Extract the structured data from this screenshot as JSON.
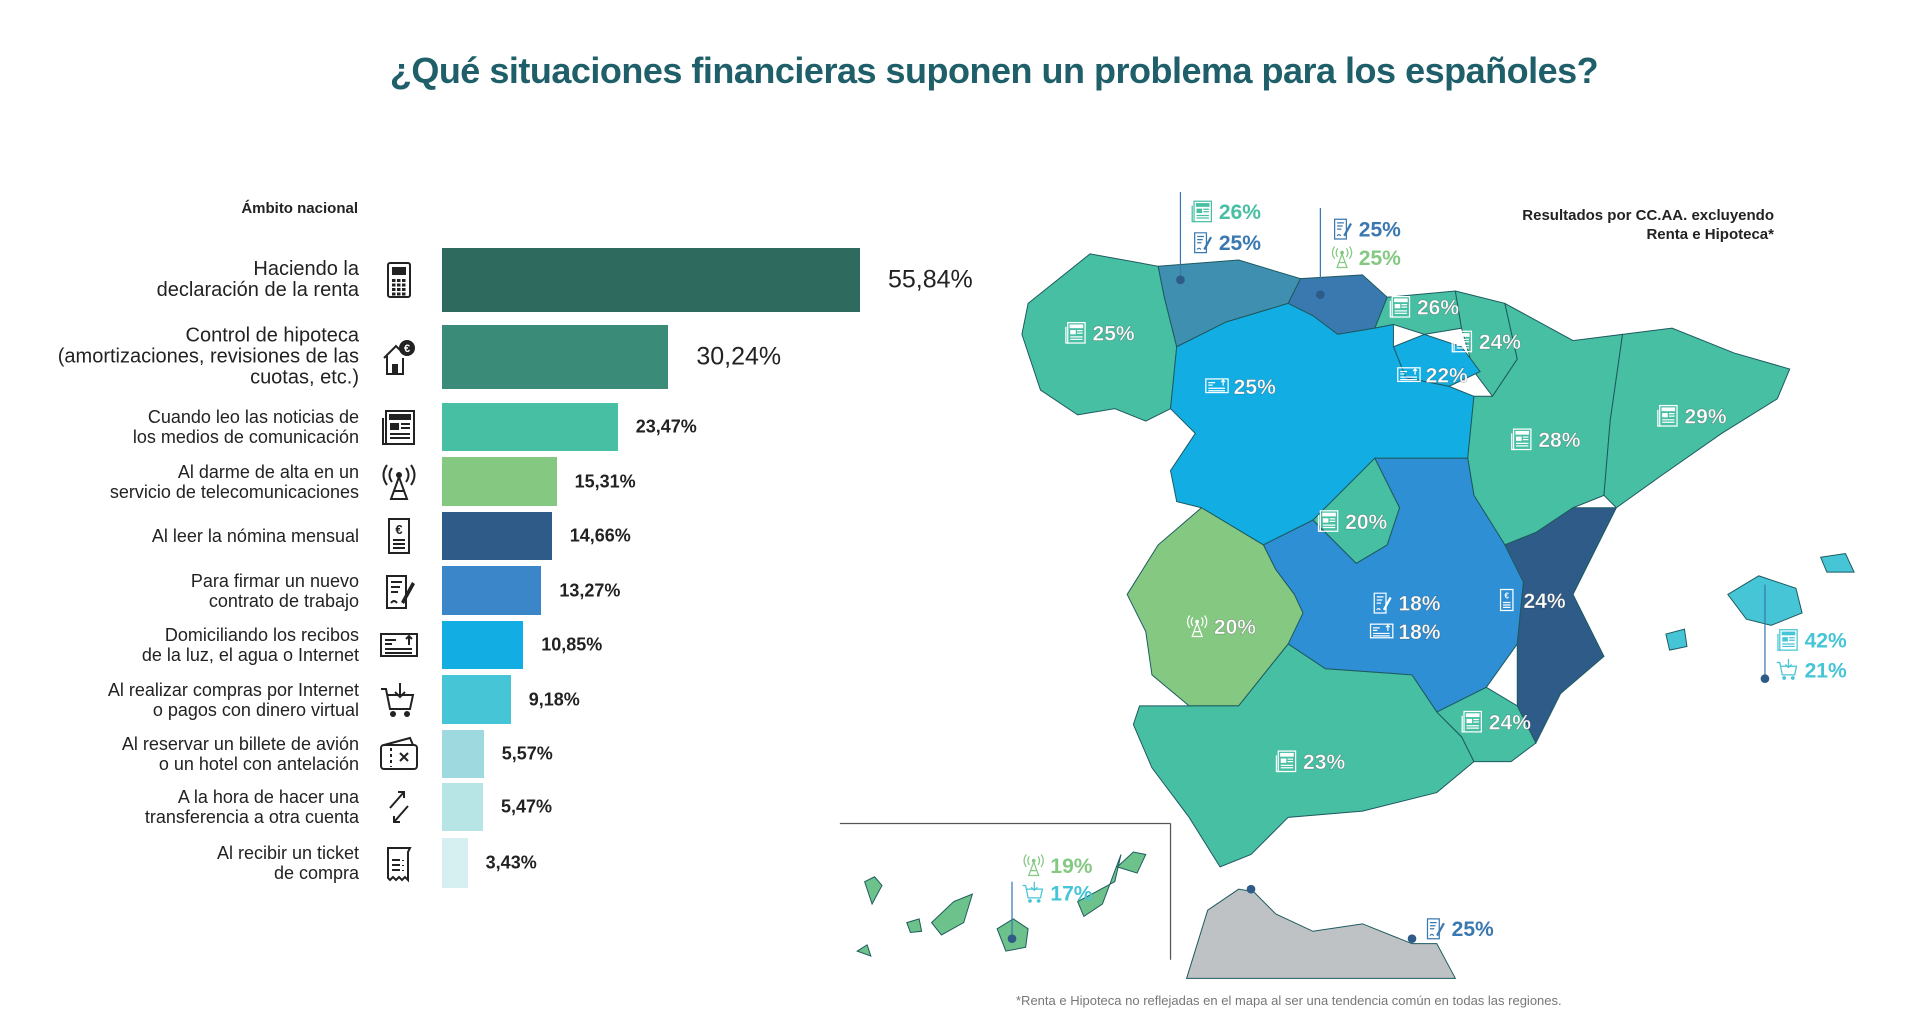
{
  "chart_data": [
    {
      "type": "bar",
      "orientation": "horizontal",
      "title": "¿Qué situaciones financieras suponen un problema para los españoles?",
      "subtitle": "Ámbito nacional",
      "unit": "%",
      "categories": [
        "Haciendo la declaración de la renta",
        "Control de hipoteca (amortizaciones, revisiones de las cuotas, etc.)",
        "Cuando leo las noticias de los medios de comunicación",
        "Al darme de alta en un servicio de telecomunicaciones",
        "Al leer la nómina mensual",
        "Para firmar un nuevo contrato de trabajo",
        "Domiciliando los recibos de la luz, el agua o Internet",
        "Al realizar compras por Internet o pagos con dinero virtual",
        "Al reservar un billete de avión o un hotel con antelación",
        "A la hora de hacer una transferencia a otra cuenta",
        "Al recibir un ticket de compra"
      ],
      "values": [
        55.84,
        30.24,
        23.47,
        15.31,
        14.66,
        13.27,
        10.85,
        9.18,
        5.57,
        5.47,
        3.43
      ],
      "data_labels": [
        "55,84%",
        "30,24%",
        "23,47%",
        "15,31%",
        "14,66%",
        "13,27%",
        "10,85%",
        "9,18%",
        "5,57%",
        "5,47%",
        "3,43%"
      ],
      "label_lines": [
        [
          "Haciendo la",
          "declaración de la renta"
        ],
        [
          "Control de hipoteca",
          "(amortizaciones, revisiones de las",
          "cuotas, etc.)"
        ],
        [
          "Cuando leo las noticias de",
          "los medios de comunicación"
        ],
        [
          "Al darme de alta en un",
          "servicio de telecomunicaciones"
        ],
        [
          "Al leer la nómina mensual"
        ],
        [
          "Para firmar un nuevo",
          "contrato de trabajo"
        ],
        [
          "Domiciliando los recibos",
          "de la luz, el agua o Internet"
        ],
        [
          "Al realizar compras por Internet",
          "o pagos con dinero virtual"
        ],
        [
          "Al reservar un billete de avión",
          "o un hotel con antelación"
        ],
        [
          "A la hora de hacer una",
          "transferencia a otra cuenta"
        ],
        [
          "Al recibir un ticket",
          "de compra"
        ]
      ],
      "icons": [
        "calculator-icon",
        "house-euro-icon",
        "newspaper-icon",
        "antenna-icon",
        "payslip-icon",
        "contract-icon",
        "bill-icon",
        "cart-icon",
        "ticket-icon",
        "transfer-icon",
        "receipt-icon"
      ],
      "colors": [
        "#2e6b5e",
        "#3a8c78",
        "#47bfa3",
        "#84c882",
        "#2f5b88",
        "#3a86c8",
        "#12aee3",
        "#45c5d5",
        "#9fd9e0",
        "#b7e5e6",
        "#d6eff0"
      ],
      "xlim": [
        0,
        55.84
      ]
    },
    {
      "type": "map",
      "title": "Resultados por CC.AA. excluyendo Renta e Hipoteca*",
      "regions": [
        {
          "id": "galicia",
          "items": [
            {
              "icon": "newspaper-icon",
              "value": "25%"
            }
          ],
          "color": "#47bfa3"
        },
        {
          "id": "asturias",
          "items": [
            {
              "icon": "newspaper-icon",
              "value": "26%"
            },
            {
              "icon": "contract-icon",
              "value": "25%"
            }
          ],
          "color": "#3f8fb0"
        },
        {
          "id": "cantabria",
          "items": [
            {
              "icon": "contract-icon",
              "value": "25%"
            },
            {
              "icon": "antenna-icon",
              "value": "25%"
            }
          ],
          "color": "#3a78b0"
        },
        {
          "id": "pais-vasco",
          "items": [
            {
              "icon": "newspaper-icon",
              "value": "26%"
            }
          ],
          "color": "#47bfa3"
        },
        {
          "id": "navarra",
          "items": [
            {
              "icon": "newspaper-icon",
              "value": "24%"
            }
          ],
          "color": "#47bfa3"
        },
        {
          "id": "la-rioja",
          "items": [
            {
              "icon": "bill-icon",
              "value": "22%"
            }
          ],
          "color": "#12aee3"
        },
        {
          "id": "castilla-y-leon",
          "items": [
            {
              "icon": "bill-icon",
              "value": "25%"
            }
          ],
          "color": "#12aee3"
        },
        {
          "id": "aragon",
          "items": [
            {
              "icon": "newspaper-icon",
              "value": "28%"
            }
          ],
          "color": "#47bfa3"
        },
        {
          "id": "cataluna",
          "items": [
            {
              "icon": "newspaper-icon",
              "value": "29%"
            }
          ],
          "color": "#47bfa3"
        },
        {
          "id": "madrid",
          "items": [
            {
              "icon": "newspaper-icon",
              "value": "20%"
            }
          ],
          "color": "#47bfa3"
        },
        {
          "id": "extremadura",
          "items": [
            {
              "icon": "antenna-icon",
              "value": "20%"
            }
          ],
          "color": "#84c882"
        },
        {
          "id": "castilla-la-mancha",
          "items": [
            {
              "icon": "contract-icon",
              "value": "18%"
            },
            {
              "icon": "bill-icon",
              "value": "18%"
            }
          ],
          "color": "#2e8fd4"
        },
        {
          "id": "valencia",
          "items": [
            {
              "icon": "payslip-icon",
              "value": "24%"
            }
          ],
          "color": "#2f5b88"
        },
        {
          "id": "murcia",
          "items": [
            {
              "icon": "newspaper-icon",
              "value": "24%"
            }
          ],
          "color": "#47bfa3"
        },
        {
          "id": "andalucia",
          "items": [
            {
              "icon": "newspaper-icon",
              "value": "23%"
            }
          ],
          "color": "#47bfa3"
        },
        {
          "id": "baleares",
          "items": [
            {
              "icon": "newspaper-icon",
              "value": "42%"
            },
            {
              "icon": "cart-icon",
              "value": "21%"
            }
          ],
          "color": "#45c5d5"
        },
        {
          "id": "canarias",
          "items": [
            {
              "icon": "antenna-icon",
              "value": "19%"
            },
            {
              "icon": "cart-icon",
              "value": "17%"
            }
          ],
          "color": "#6cc28a"
        },
        {
          "id": "ceuta-melilla",
          "items": [
            {
              "icon": "contract-icon",
              "value": "25%"
            }
          ],
          "color": "#bfc2c4"
        }
      ]
    }
  ],
  "footnote": "*Renta e Hipoteca no reflejadas en el mapa al ser una tendencia común en todas las regiones.",
  "map_legend": [
    "Resultados por CC.AA. excluyendo",
    "Renta e Hipoteca*"
  ]
}
